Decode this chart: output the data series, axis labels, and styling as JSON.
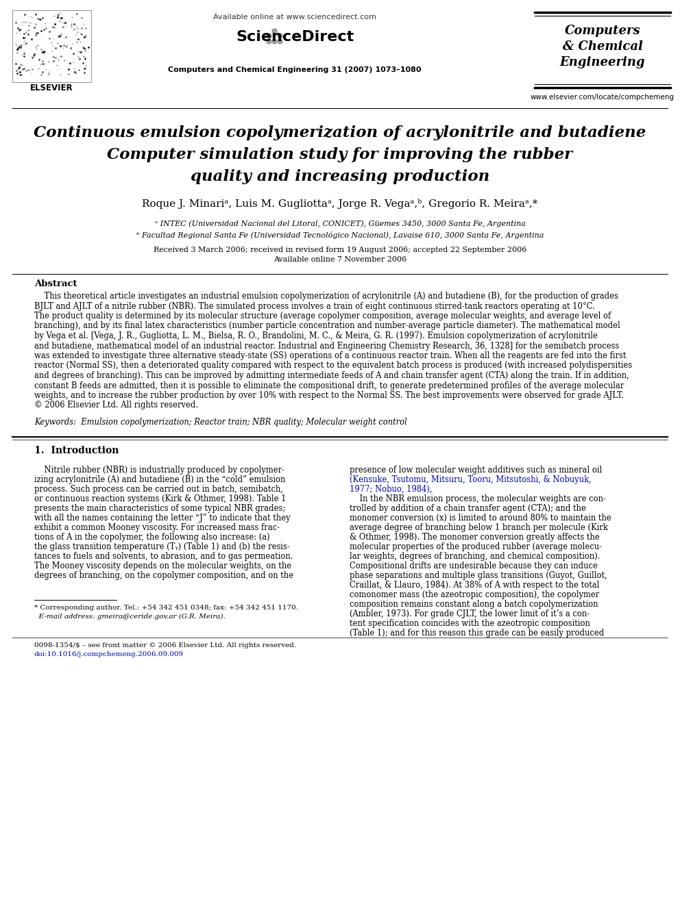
{
  "bg_color": "#ffffff",
  "title_line1": "Continuous emulsion copolymerization of acrylonitrile and butadiene",
  "title_line2": "Computer simulation study for improving the rubber",
  "title_line3": "quality and increasing production",
  "affil_a": "ᵃ INTEC (Universidad Nacional del Litoral, CONICET), Güemes 3450, 3000 Santa Fe, Argentina",
  "affil_b": "ᵇ Facultad Regional Santa Fe (Universidad Tecnológico Nacional), Lavaise 610, 3000 Santa Fe, Argentina",
  "received": "Received 3 March 2006; received in revised form 19 August 2006; accepted 22 September 2006",
  "available": "Available online 7 November 2006",
  "abstract_title": "Abstract",
  "keywords": "Keywords:  Emulsion copolymerization; Reactor train; NBR quality; Molecular weight control",
  "section1_title": "1.  Introduction",
  "journal_info": "Computers and Chemical Engineering 31 (2007) 1073–1080",
  "available_online": "Available online at www.sciencedirect.com",
  "journal_name_line1": "Computers",
  "journal_name_line2": "& Chemical",
  "journal_name_line3": "Engineering",
  "journal_url": "www.elsevier.com/locate/compchemeng",
  "link_color": "#0000BB",
  "doi_color": "#0000BB",
  "abstract_lines": [
    "    This theoretical article investigates an industrial emulsion copolymerization of acrylonitrile (A) and butadiene (B), for the production of grades",
    "BJLT and AJLT of a nitrile rubber (NBR). The simulated process involves a train of eight continuous stirred-tank reactors operating at 10°C.",
    "The product quality is determined by its molecular structure (average copolymer composition, average molecular weights, and average level of",
    "branching), and by its final latex characteristics (number particle concentration and number-average particle diameter). The mathematical model",
    "by Vega et al. [Vega, J. R., Gugliotta, L. M., Bielsa, R. O., Brandolini, M. C., & Meira, G. R. (1997). Emulsion copolymerization of acrylonitrile",
    "and butadiene, mathematical model of an industrial reactor. Industrial and Engineering Chemistry Research, 36, 1328] for the semibatch process",
    "was extended to investigate three alternative steady-state (SS) operations of a continuous reactor train. When all the reagents are fed into the first",
    "reactor (Normal SS), then a deteriorated quality compared with respect to the equivalent batch process is produced (with increased polydispersities",
    "and degrees of branching). This can be improved by admitting intermediate feeds of A and chain transfer agent (CTA) along the train. If in addition,",
    "constant B feeds are admitted, then it is possible to eliminate the compositional drift, to generate predetermined profiles of the average molecular",
    "weights, and to increase the rubber production by over 10% with respect to the Normal SS. The best improvements were observed for grade AJLT.",
    "© 2006 Elsevier Ltd. All rights reserved."
  ],
  "left_intro": [
    "    Nitrile rubber (NBR) is industrially produced by copolymer-",
    "izing acrylonitrile (A) and butadiene (B) in the “cold” emulsion",
    "process. Such process can be carried out in batch, semibatch,",
    "or continuous reaction systems (Kirk & Othmer, 1998). Table 1",
    "presents the main characteristics of some typical NBR grades;",
    "with all the names containing the letter “J” to indicate that they",
    "exhibit a common Mooney viscosity. For increased mass frac-",
    "tions of A in the copolymer, the following also increase: (a)",
    "the glass transition temperature (Tᵧ) (Table 1) and (b) the resis-",
    "tances to fuels and solvents, to abrasion, and to gas permeation.",
    "The Mooney viscosity depends on the molecular weights, on the",
    "degrees of branching, on the copolymer composition, and on the"
  ],
  "right_intro_black1": "presence of low molecular weight additives such as mineral oil",
  "right_intro_blue1": "(Kensuke, Tsutomu, Mitsuru, Tooru, Mitsutoshi, & Nobuyuk,",
  "right_intro_blue2": "1977; Nobuo, 1984),",
  "right_intro_rest": [
    "    In the NBR emulsion process, the molecular weights are con-",
    "trolled by addition of a chain transfer agent (CTA); and the",
    "monomer conversion (x) is limited to around 80% to maintain the",
    "average degree of branching below 1 branch per molecule (Kirk",
    "& Othmer, 1998). The monomer conversion greatly affects the",
    "molecular properties of the produced rubber (average molecu-",
    "lar weights, degrees of branching, and chemical composition).",
    "Compositional drifts are undesirable because they can induce",
    "phase separations and multiple glass transitions (Guyot, Guillot,",
    "Craillat, & Llauro, 1984). At 38% of A with respect to the total",
    "comonomer mass (the azeotropic composition), the copolymer",
    "composition remains constant along a batch copolymerization",
    "(Ambler, 1973). For grade CJLT, the lower limit of it’s a con-",
    "tent specification coincides with the azeotropic composition",
    "(Table 1); and for this reason this grade can be easily produced"
  ],
  "footnote_line1": "* Corresponding author. Tel.: +54 342 451 0348; fax: +54 342 451 1170.",
  "footnote_line2": "  E-mail address: gmeira@ceride.gov.ar (G.R. Meira).",
  "copyright_line": "0098-1354/$ – see front matter © 2006 Elsevier Ltd. All rights reserved.",
  "doi_line": "doi:10.1016/j.compchemeng.2006.09.009"
}
